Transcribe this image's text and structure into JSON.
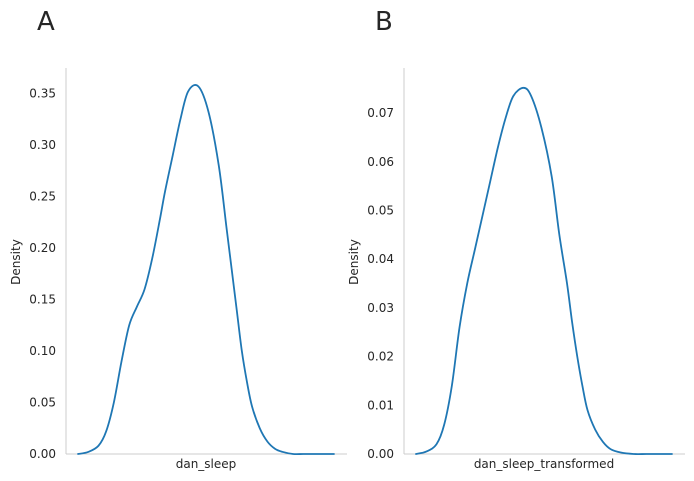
{
  "panels": [
    {
      "letter": "A"
    },
    {
      "letter": "B"
    }
  ],
  "chart_data": [
    {
      "type": "line",
      "title": "",
      "xlabel": "dan_sleep",
      "ylabel": "Density",
      "ylim": [
        0,
        0.375
      ],
      "yticks": [
        0.0,
        0.05,
        0.1,
        0.15,
        0.2,
        0.25,
        0.3,
        0.35
      ],
      "ytick_labels": [
        "0.00",
        "0.05",
        "0.10",
        "0.15",
        "0.20",
        "0.25",
        "0.30",
        "0.35"
      ],
      "xticks": [],
      "grid": false,
      "color": "#1f77b4",
      "series": [
        {
          "x": [
            0.0,
            0.04,
            0.08,
            0.11,
            0.14,
            0.17,
            0.2,
            0.23,
            0.26,
            0.29,
            0.32,
            0.34,
            0.37,
            0.4,
            0.43,
            0.47,
            0.51,
            0.55,
            0.58,
            0.6,
            0.62,
            0.64,
            0.66,
            0.68,
            0.71,
            0.74,
            0.77,
            0.8,
            0.84,
            0.88,
            0.92,
            0.96,
            1.0
          ],
          "values": [
            0.0,
            0.002,
            0.008,
            0.022,
            0.05,
            0.09,
            0.125,
            0.143,
            0.16,
            0.19,
            0.228,
            0.255,
            0.29,
            0.325,
            0.352,
            0.357,
            0.332,
            0.28,
            0.22,
            0.18,
            0.14,
            0.1,
            0.07,
            0.046,
            0.025,
            0.012,
            0.005,
            0.002,
            0.0,
            0.0,
            0.0,
            0.0,
            0.0
          ]
        }
      ]
    },
    {
      "type": "line",
      "title": "",
      "xlabel": "dan_sleep_transformed",
      "ylabel": "Density",
      "ylim": [
        0,
        0.079
      ],
      "yticks": [
        0.0,
        0.01,
        0.02,
        0.03,
        0.04,
        0.05,
        0.06,
        0.07
      ],
      "ytick_labels": [
        "0.00",
        "0.01",
        "0.02",
        "0.03",
        "0.04",
        "0.05",
        "0.06",
        "0.07"
      ],
      "xticks": [],
      "grid": false,
      "color": "#1f77b4",
      "series": [
        {
          "x": [
            0.0,
            0.04,
            0.08,
            0.11,
            0.14,
            0.17,
            0.2,
            0.23,
            0.26,
            0.29,
            0.32,
            0.35,
            0.38,
            0.42,
            0.45,
            0.49,
            0.53,
            0.56,
            0.59,
            0.61,
            0.63,
            0.65,
            0.67,
            0.7,
            0.73,
            0.76,
            0.8,
            0.85,
            0.9,
            0.95,
            1.0
          ],
          "values": [
            0.0,
            0.0005,
            0.002,
            0.006,
            0.014,
            0.026,
            0.035,
            0.042,
            0.049,
            0.056,
            0.063,
            0.069,
            0.0735,
            0.0752,
            0.0735,
            0.067,
            0.057,
            0.045,
            0.035,
            0.027,
            0.02,
            0.014,
            0.009,
            0.005,
            0.0025,
            0.001,
            0.0003,
            0.0,
            0.0,
            0.0,
            0.0
          ]
        }
      ]
    }
  ]
}
